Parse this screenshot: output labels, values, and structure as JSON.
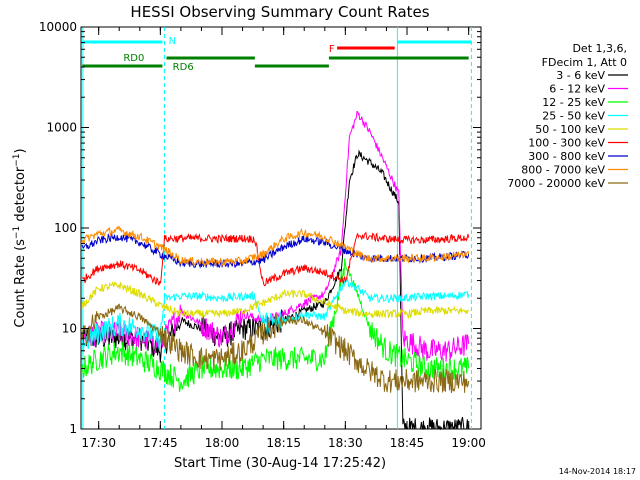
{
  "chart_data": {
    "type": "line",
    "title": "HESSI Observing Summary Count Rates",
    "xlabel": "Start Time (30-Aug-14 17:25:42)",
    "ylabel": "Count Rate (s⁻¹ detector⁻¹)",
    "ylabel_main": "Count Rate (s",
    "ylabel_exp": "−1",
    "ylabel_mid": " detector",
    "ylabel_close": ")",
    "y_scale": "log",
    "ylim": [
      1,
      10000
    ],
    "xlim": [
      "17:25:42",
      "19:03:00"
    ],
    "x_ticks": [
      "17:30",
      "17:45",
      "18:00",
      "18:15",
      "18:30",
      "18:45",
      "19:00"
    ],
    "y_ticks": [
      "1",
      "10",
      "100",
      "1000",
      "10000"
    ],
    "legend_header": [
      "Det 1,3,6,",
      "FDecim 1, Att 0"
    ],
    "legend_position": "right",
    "series": [
      {
        "name": "3 - 6 keV",
        "color": "#000000",
        "x": [
          "17:26",
          "17:30",
          "17:35",
          "17:40",
          "17:45",
          "17:50",
          "17:55",
          "18:00",
          "18:05",
          "18:10",
          "18:15",
          "18:20",
          "18:25",
          "18:29",
          "18:31",
          "18:33",
          "18:36",
          "18:39",
          "18:41",
          "18:43",
          "18:44",
          "18:50",
          "18:55",
          "19:00"
        ],
        "values": [
          8,
          8,
          8,
          8,
          6,
          12,
          10,
          8,
          10,
          10,
          12,
          15,
          18,
          40,
          300,
          550,
          450,
          350,
          250,
          180,
          1,
          1,
          1,
          1
        ]
      },
      {
        "name": "6 - 12 keV",
        "color": "#ff00ff",
        "x": [
          "17:26",
          "17:30",
          "17:35",
          "17:40",
          "17:45",
          "17:50",
          "17:55",
          "18:00",
          "18:05",
          "18:10",
          "18:15",
          "18:20",
          "18:25",
          "18:29",
          "18:31",
          "18:33",
          "18:36",
          "18:39",
          "18:41",
          "18:43",
          "18:44",
          "18:50",
          "18:55",
          "19:00"
        ],
        "values": [
          8,
          9,
          9,
          8,
          7,
          15,
          11,
          8,
          14,
          12,
          14,
          18,
          22,
          60,
          800,
          1400,
          900,
          500,
          330,
          220,
          8,
          6,
          6,
          7
        ]
      },
      {
        "name": "12 - 25 keV",
        "color": "#00ff00",
        "x": [
          "17:26",
          "17:30",
          "17:35",
          "17:40",
          "17:45",
          "17:50",
          "17:55",
          "18:00",
          "18:05",
          "18:10",
          "18:15",
          "18:20",
          "18:25",
          "18:30",
          "18:33",
          "18:36",
          "18:40",
          "18:44",
          "18:50",
          "18:55",
          "19:00"
        ],
        "values": [
          4,
          5,
          6,
          5,
          4,
          3,
          4,
          4,
          4,
          5,
          5,
          5,
          5,
          45,
          22,
          10,
          6,
          5,
          4,
          4,
          4
        ]
      },
      {
        "name": "25 - 50 keV",
        "color": "#00ffff",
        "x": [
          "17:26",
          "17:30",
          "17:35",
          "17:40",
          "17:45",
          "17:46",
          "17:50",
          "17:55",
          "18:00",
          "18:05",
          "18:08",
          "18:10",
          "18:15",
          "18:20",
          "18:25",
          "18:30",
          "18:33",
          "18:36",
          "18:40",
          "18:44",
          "18:50",
          "18:55",
          "19:00"
        ],
        "values": [
          7,
          9,
          11,
          10,
          8,
          20,
          21,
          21,
          20,
          21,
          21,
          11,
          12,
          14,
          13,
          30,
          25,
          20,
          20,
          20,
          21,
          21,
          22
        ]
      },
      {
        "name": "50 - 100 keV",
        "color": "#dddd00",
        "x": [
          "17:26",
          "17:30",
          "17:35",
          "17:40",
          "17:45",
          "17:50",
          "17:55",
          "18:00",
          "18:05",
          "18:10",
          "18:15",
          "18:20",
          "18:25",
          "18:30",
          "18:35",
          "18:40",
          "18:45",
          "18:50",
          "18:55",
          "19:00"
        ],
        "values": [
          17,
          25,
          27,
          22,
          17,
          14,
          14,
          14,
          15,
          18,
          22,
          22,
          18,
          15,
          14,
          14,
          14,
          15,
          15,
          15
        ]
      },
      {
        "name": "100 - 300 keV",
        "color": "#ff0000",
        "x": [
          "17:26",
          "17:30",
          "17:35",
          "17:40",
          "17:45",
          "17:46",
          "17:50",
          "17:55",
          "18:00",
          "18:05",
          "18:08",
          "18:10",
          "18:15",
          "18:20",
          "18:25",
          "18:30",
          "18:33",
          "18:40",
          "18:45",
          "18:50",
          "18:55",
          "19:00"
        ],
        "values": [
          30,
          40,
          44,
          38,
          28,
          78,
          79,
          79,
          78,
          79,
          78,
          28,
          35,
          40,
          36,
          30,
          85,
          78,
          76,
          76,
          78,
          80
        ]
      },
      {
        "name": "300 - 800 keV",
        "color": "#0000cc",
        "x": [
          "17:26",
          "17:30",
          "17:35",
          "17:40",
          "17:45",
          "17:50",
          "17:55",
          "18:00",
          "18:05",
          "18:10",
          "18:15",
          "18:20",
          "18:25",
          "18:30",
          "18:35",
          "18:40",
          "18:45",
          "18:50",
          "18:55",
          "19:00"
        ],
        "values": [
          62,
          75,
          82,
          72,
          55,
          45,
          44,
          44,
          44,
          48,
          65,
          78,
          72,
          60,
          50,
          50,
          50,
          50,
          52,
          55
        ]
      },
      {
        "name": "800 - 7000 keV",
        "color": "#ff8c00",
        "x": [
          "17:26",
          "17:30",
          "17:35",
          "17:40",
          "17:45",
          "17:50",
          "17:55",
          "18:00",
          "18:05",
          "18:10",
          "18:15",
          "18:20",
          "18:25",
          "18:30",
          "18:35",
          "18:40",
          "18:45",
          "18:50",
          "18:55",
          "19:00"
        ],
        "values": [
          75,
          88,
          95,
          82,
          65,
          48,
          46,
          46,
          47,
          55,
          78,
          90,
          82,
          65,
          50,
          50,
          50,
          50,
          52,
          55
        ]
      },
      {
        "name": "7000 - 20000 keV",
        "color": "#8b6914",
        "x": [
          "17:26",
          "17:30",
          "17:35",
          "17:40",
          "17:45",
          "17:50",
          "17:55",
          "18:00",
          "18:05",
          "18:10",
          "18:15",
          "18:20",
          "18:25",
          "18:30",
          "18:35",
          "18:40",
          "18:45",
          "18:50",
          "18:55",
          "19:00"
        ],
        "values": [
          8,
          13,
          16,
          13,
          9,
          6,
          5,
          5,
          6,
          9,
          12,
          12,
          9,
          6,
          4,
          3,
          3,
          3,
          3,
          3
        ]
      }
    ],
    "annotations": [
      {
        "text": "N",
        "color": "#00ffff"
      },
      {
        "text": "F",
        "color": "#ff0000"
      },
      {
        "text": "RD0",
        "color": "#008000"
      },
      {
        "text": "RD6",
        "color": "#008000"
      }
    ],
    "timestamp": "14-Nov-2014 18:17"
  }
}
